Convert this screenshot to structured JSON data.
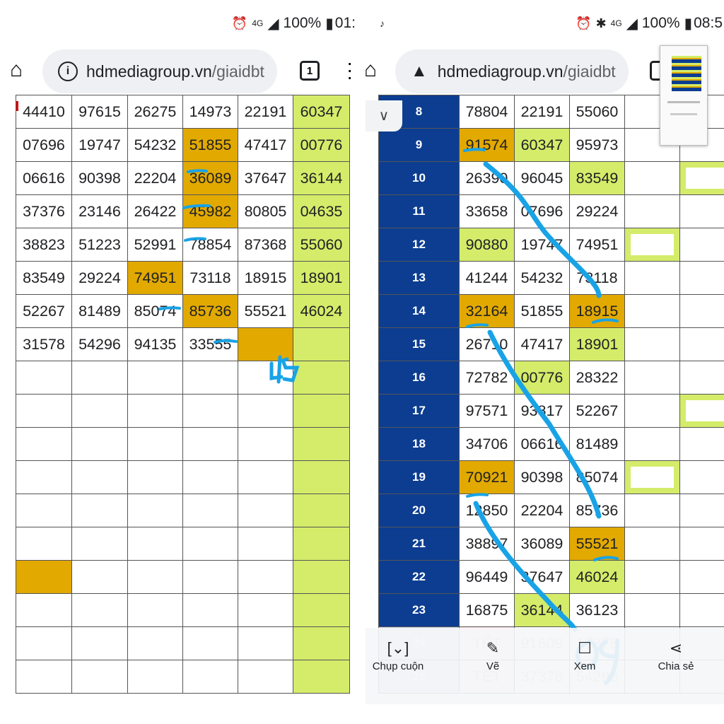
{
  "left": {
    "status": {
      "battery": "100%",
      "time": "01:",
      "network": "4G"
    },
    "address": {
      "domain": "hdmediagroup.vn",
      "path": "/giaidbt",
      "tab_count": "1"
    },
    "rows": [
      [
        "44410",
        "97615",
        "26275",
        "14973",
        "22191",
        "60347"
      ],
      [
        "07696",
        "19747",
        "54232",
        "51855",
        "47417",
        "00776"
      ],
      [
        "06616",
        "90398",
        "22204",
        "36089",
        "37647",
        "36144"
      ],
      [
        "37376",
        "23146",
        "26422",
        "45982",
        "80805",
        "04635"
      ],
      [
        "38823",
        "51223",
        "52991",
        "78854",
        "87368",
        "55060"
      ],
      [
        "83549",
        "29224",
        "74951",
        "73118",
        "18915",
        "18901"
      ],
      [
        "52267",
        "81489",
        "85074",
        "85736",
        "55521",
        "46024"
      ],
      [
        "31578",
        "54296",
        "94135",
        "33555",
        "",
        ""
      ]
    ],
    "annotation": "45"
  },
  "right": {
    "status": {
      "battery": "100%",
      "time": "08:5",
      "network": "4G"
    },
    "address": {
      "domain": "hdmediagroup.vn",
      "path": "/giaidbt"
    },
    "rows": [
      {
        "n": "8",
        "a": "78804",
        "b": "22191",
        "c": "55060"
      },
      {
        "n": "9",
        "a": "91574",
        "b": "60347",
        "c": "95973"
      },
      {
        "n": "10",
        "a": "26390",
        "b": "96045",
        "c": "83549"
      },
      {
        "n": "11",
        "a": "33658",
        "b": "07696",
        "c": "29224"
      },
      {
        "n": "12",
        "a": "90880",
        "b": "19747",
        "c": "74951"
      },
      {
        "n": "13",
        "a": "41244",
        "b": "54232",
        "c": "73118"
      },
      {
        "n": "14",
        "a": "32164",
        "b": "51855",
        "c": "18915"
      },
      {
        "n": "15",
        "a": "26710",
        "b": "47417",
        "c": "18901"
      },
      {
        "n": "16",
        "a": "72782",
        "b": "00776",
        "c": "28322"
      },
      {
        "n": "17",
        "a": "97571",
        "b": "93817",
        "c": "52267"
      },
      {
        "n": "18",
        "a": "34706",
        "b": "06616",
        "c": "81489"
      },
      {
        "n": "19",
        "a": "70921",
        "b": "90398",
        "c": "85074"
      },
      {
        "n": "20",
        "a": "12850",
        "b": "22204",
        "c": "85736"
      },
      {
        "n": "21",
        "a": "38897",
        "b": "36089",
        "c": "55521"
      },
      {
        "n": "22",
        "a": "96449",
        "b": "37647",
        "c": "46024"
      },
      {
        "n": "23",
        "a": "16875",
        "b": "36144",
        "c": "36123"
      },
      {
        "n": "24",
        "a": "TẾT",
        "b": "91609",
        "c": "17378"
      },
      {
        "n": "25",
        "a": "TẾT",
        "b": "37376",
        "c": "54296"
      }
    ],
    "annotation": "09",
    "screenshot_toolbar": [
      {
        "label": "Chụp cuộn",
        "icon": "scroll-capture-icon"
      },
      {
        "label": "Vẽ",
        "icon": "pen-icon"
      },
      {
        "label": "Xem",
        "icon": "view-icon"
      },
      {
        "label": "Chia sẻ",
        "icon": "share-icon"
      }
    ]
  },
  "colors": {
    "gold": "#e2a900",
    "lime": "#d4ec6a",
    "navy": "#0c3d91",
    "pen": "#19a3e6"
  }
}
